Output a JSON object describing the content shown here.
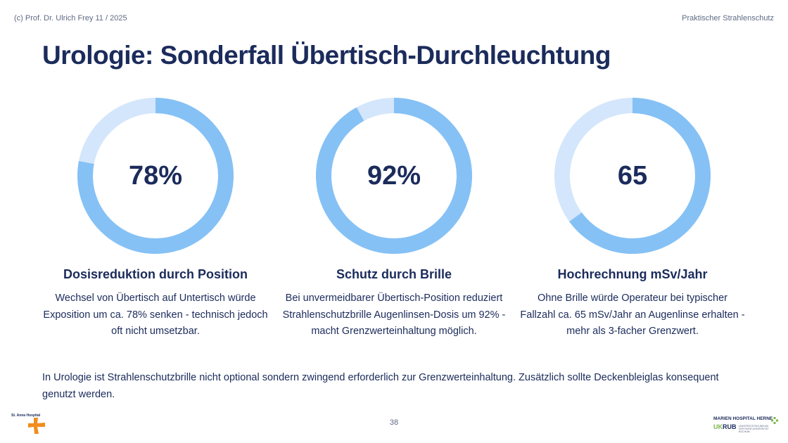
{
  "header": {
    "copyright": "(c) Prof. Dr. Ulrich Frey 11 / 2025",
    "course": "Praktischer Strahlenschutz"
  },
  "title": "Urologie: Sonderfall Übertisch-Durchleuchtung",
  "colors": {
    "ring_fill": "#85c1f5",
    "ring_track": "#d4e6fb",
    "text_dark": "#1b2b5b",
    "logo_orange": "#f28c1e",
    "logo_green": "#7ab648"
  },
  "metrics": [
    {
      "value": "78%",
      "fraction": 0.78,
      "heading": "Dosisreduktion durch Position",
      "text": "Wechsel von Übertisch auf Untertisch würde Exposition um ca. 78% senken - technisch jedoch oft nicht umsetzbar."
    },
    {
      "value": "92%",
      "fraction": 0.92,
      "heading": "Schutz durch Brille",
      "text": "Bei unvermeidbarer Übertisch-Position reduziert Strahlenschutzbrille Augenlinsen-Dosis um 92% - macht Grenzwerteinhaltung möglich."
    },
    {
      "value": "65",
      "fraction": 0.65,
      "heading": "Hochrechnung mSv/Jahr",
      "text": "Ohne Brille würde Operateur bei typischer Fallzahl ca. 65 mSv/Jahr an Augenlinse erhalten - mehr als 3-facher Grenzwert."
    }
  ],
  "summary": "In Urologie ist Strahlenschutzbrille nicht optional sondern zwingend erforderlich zur Grenzwerteinhaltung. Zusätzlich sollte Deckenbleiglas konsequent genutzt werden.",
  "page_number": "38",
  "logos": {
    "left_text": "St. Anna Hospital",
    "right_line1": "MARIEN HOSPITAL HERNE",
    "right_uk": "UK",
    "right_rub": "RUB",
    "right_sub": "UNIVERSITÄTSKLINIKUM DER RUHR-UNIVERSITÄT BOCHUM"
  }
}
